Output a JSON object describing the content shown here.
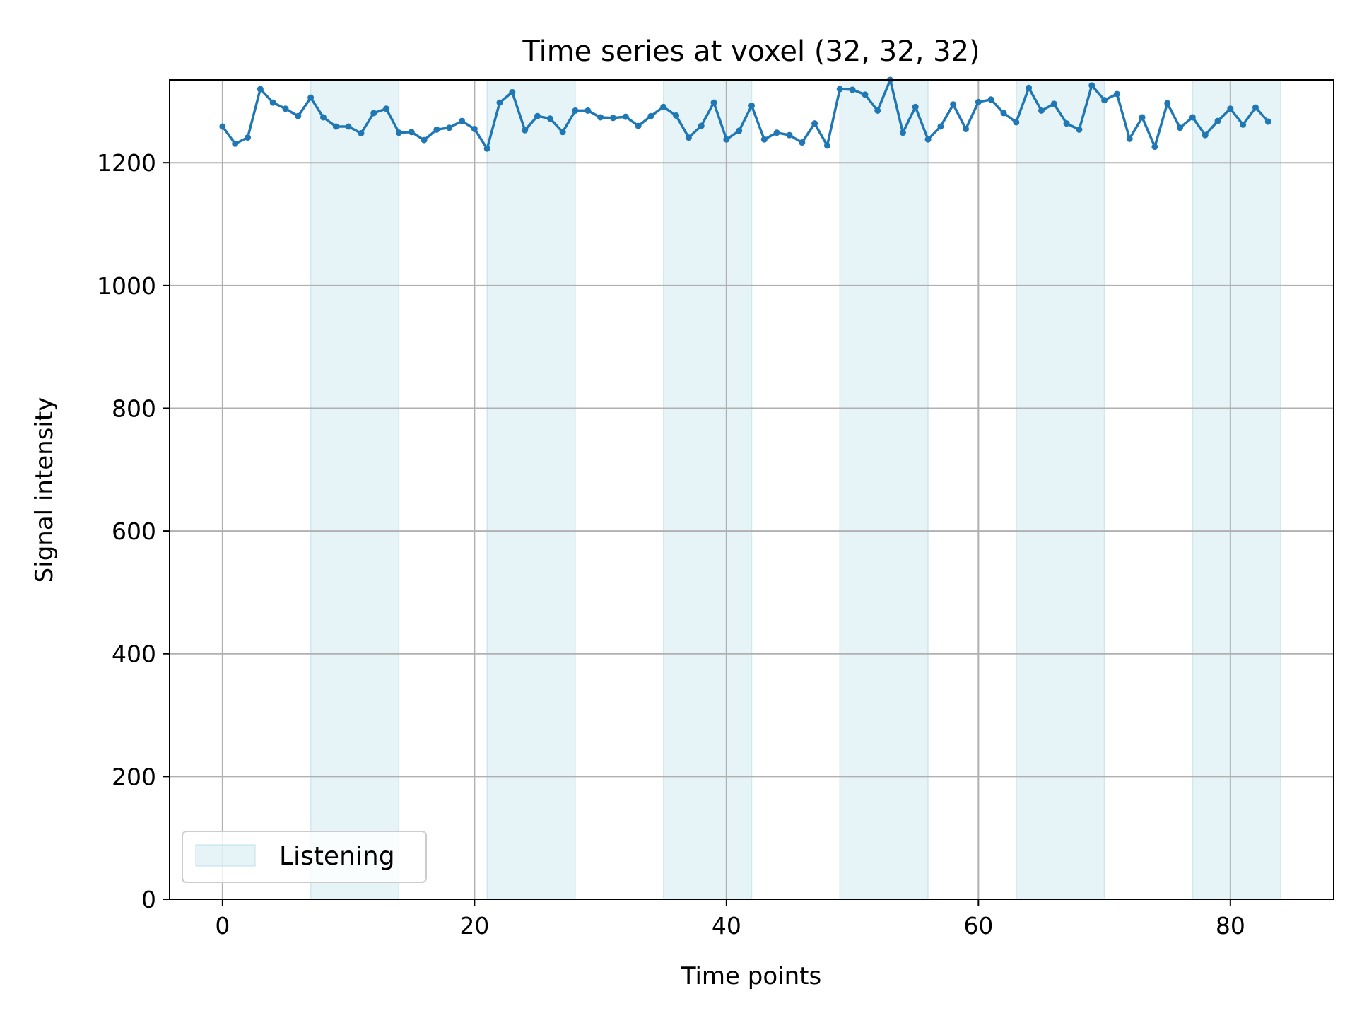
{
  "chart_data": {
    "type": "line",
    "title": "Time series at voxel (32, 32, 32)",
    "xlabel": "Time points",
    "ylabel": "Signal intensity",
    "xlim": [
      -4.2,
      88.2
    ],
    "ylim": [
      0,
      1335
    ],
    "xticks": [
      0,
      20,
      40,
      60,
      80
    ],
    "yticks": [
      0,
      200,
      400,
      600,
      800,
      1000,
      1200
    ],
    "grid": true,
    "legend": {
      "position": "lower-left",
      "entries": [
        "Listening"
      ]
    },
    "colors": {
      "line": "#1f77b4",
      "band": "#add8e6",
      "grid": "#b0b0b0"
    },
    "shaded_intervals": {
      "label": "Listening",
      "ranges": [
        [
          7,
          14
        ],
        [
          21,
          28
        ],
        [
          35,
          42
        ],
        [
          49,
          56
        ],
        [
          63,
          70
        ],
        [
          77,
          84
        ]
      ]
    },
    "series": [
      {
        "x": [
          0,
          1,
          2,
          3,
          4,
          5,
          6,
          7,
          8,
          9,
          10,
          11,
          12,
          13,
          14,
          15,
          16,
          17,
          18,
          19,
          20,
          21,
          22,
          23,
          24,
          25,
          26,
          27,
          28,
          29,
          30,
          31,
          32,
          33,
          34,
          35,
          36,
          37,
          38,
          39,
          40,
          41,
          42,
          43,
          44,
          45,
          46,
          47,
          48,
          49,
          50,
          51,
          52,
          53,
          54,
          55,
          56,
          57,
          58,
          59,
          60,
          61,
          62,
          63,
          64,
          65,
          66,
          67,
          68,
          69,
          70,
          71,
          72,
          73,
          74,
          75,
          76,
          77,
          78,
          79,
          80,
          81,
          82,
          83
        ],
        "values": [
          1259,
          1231,
          1241,
          1320,
          1298,
          1288,
          1276,
          1306,
          1274,
          1259,
          1259,
          1248,
          1281,
          1288,
          1249,
          1250,
          1237,
          1254,
          1257,
          1268,
          1255,
          1223,
          1298,
          1315,
          1253,
          1276,
          1272,
          1250,
          1285,
          1285,
          1274,
          1273,
          1275,
          1260,
          1276,
          1291,
          1277,
          1241,
          1260,
          1298,
          1238,
          1252,
          1293,
          1238,
          1249,
          1245,
          1233,
          1264,
          1228,
          1320,
          1319,
          1311,
          1285,
          1335,
          1249,
          1291,
          1238,
          1259,
          1295,
          1255,
          1299,
          1303,
          1281,
          1266,
          1322,
          1285,
          1296,
          1264,
          1254,
          1326,
          1302,
          1312,
          1239,
          1274,
          1226,
          1297,
          1257,
          1274,
          1245,
          1268,
          1288,
          1262,
          1290,
          1267
        ]
      }
    ]
  }
}
